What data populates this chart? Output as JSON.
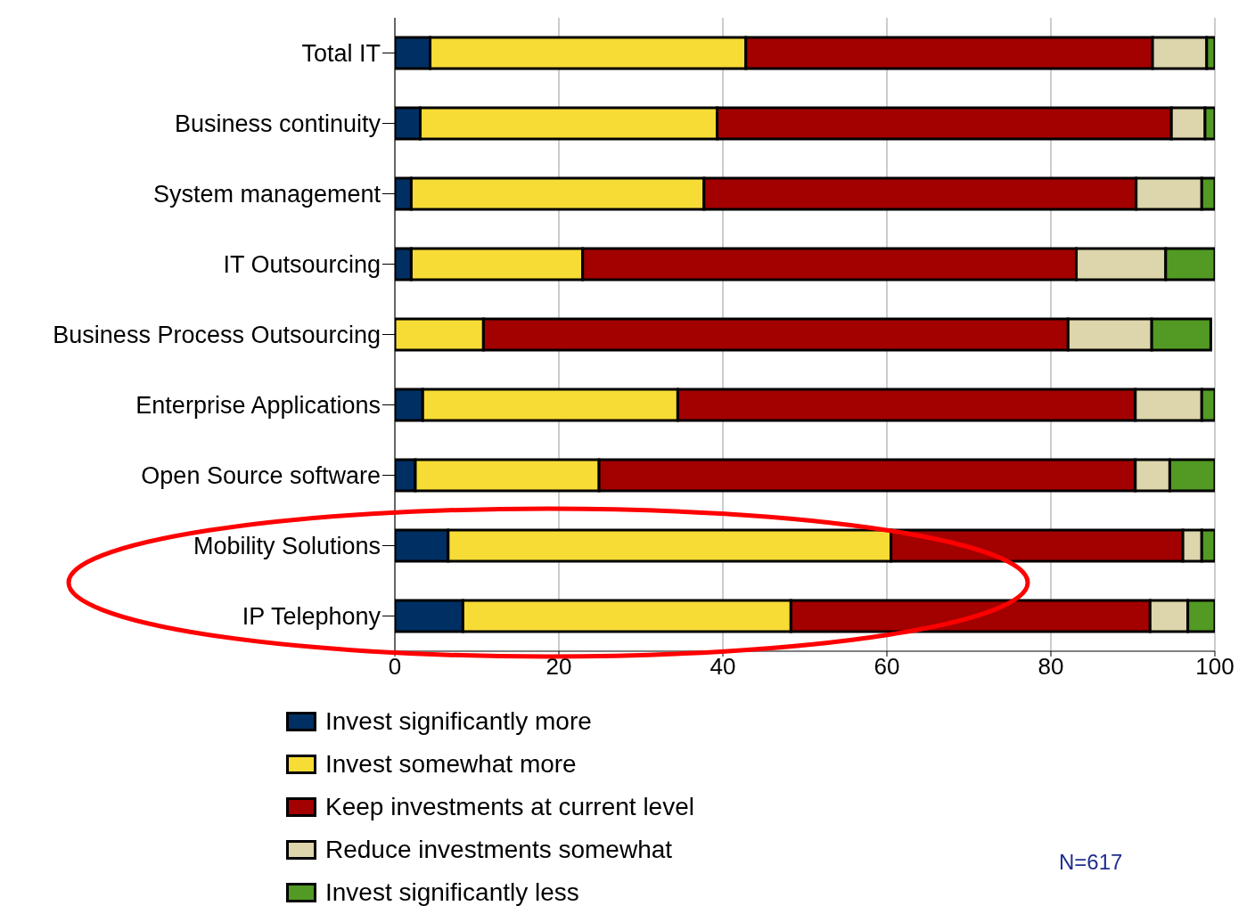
{
  "chart_data": {
    "type": "bar",
    "orientation": "horizontal",
    "stacked": true,
    "categories": [
      "Total IT",
      "Business continuity",
      "System management",
      "IT Outsourcing",
      "Business Process Outsourcing",
      "Enterprise Applications",
      "Open Source software",
      "Mobility Solutions",
      "IP Telephony"
    ],
    "series": [
      {
        "name": "Invest significantly more",
        "color": "#003063",
        "values": [
          4.3,
          3.1,
          2.0,
          2.0,
          null,
          3.4,
          2.5,
          6.5,
          8.3
        ]
      },
      {
        "name": "Invest somewhat more",
        "color": "#f7dc36",
        "values": [
          38.5,
          36.2,
          35.7,
          20.9,
          10.8,
          31.1,
          22.4,
          54.0,
          40.0
        ]
      },
      {
        "name": "Keep investments at current level",
        "color": "#a30000",
        "values": [
          49.6,
          55.4,
          52.7,
          60.2,
          71.3,
          55.8,
          65.4,
          35.6,
          43.8
        ]
      },
      {
        "name": "Reduce investments somewhat",
        "color": "#ddd5ab",
        "values": [
          6.6,
          4.1,
          8.0,
          10.9,
          10.2,
          8.1,
          4.2,
          2.3,
          4.6
        ]
      },
      {
        "name": "Invest significantly less",
        "color": "#529a24",
        "values": [
          1.0,
          1.2,
          1.6,
          6.0,
          7.2,
          1.6,
          5.5,
          1.6,
          3.3
        ]
      }
    ],
    "xlim": [
      0,
      100
    ],
    "xticks": [
      0,
      20,
      40,
      60,
      80,
      100
    ],
    "grid": "x",
    "legend": "bottom",
    "annotations": [
      "N=617"
    ]
  }
}
